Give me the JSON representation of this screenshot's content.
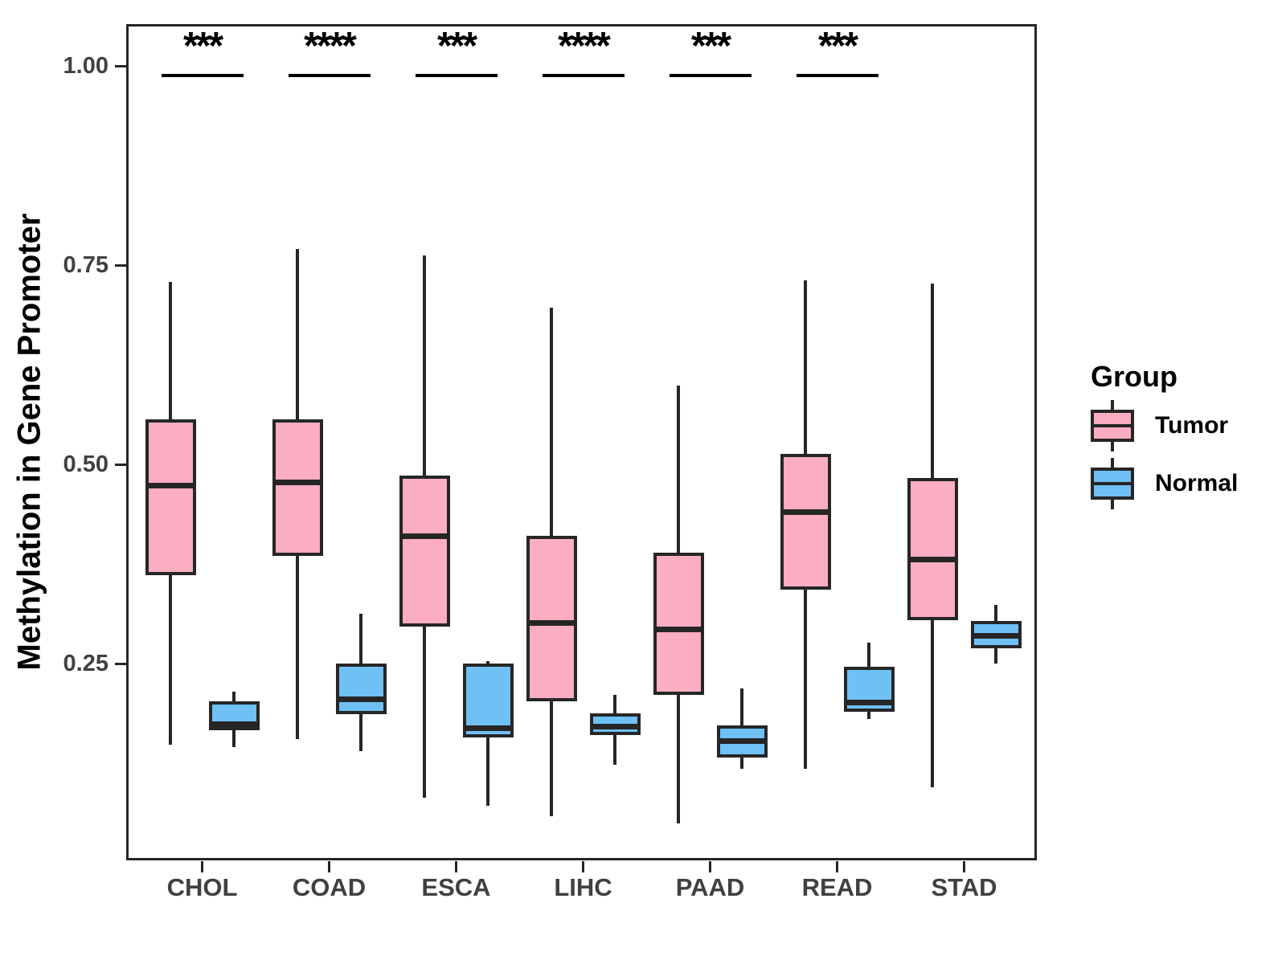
{
  "figure": {
    "background": "#ffffff"
  },
  "y_axis": {
    "title": "Methylation in Gene Promoter",
    "tick_labels": [
      "1.00",
      "0.75",
      "0.50",
      "0.25"
    ],
    "tick_values": [
      1.0,
      0.75,
      0.5,
      0.25
    ]
  },
  "x_axis": {
    "tick_labels": [
      "CHOL",
      "COAD",
      "ESCA",
      "LIHC",
      "PAAD",
      "READ",
      "STAD"
    ]
  },
  "legend": {
    "title": "Group",
    "entries": [
      {
        "label": "Tumor",
        "color": "#FBAEC1"
      },
      {
        "label": "Normal",
        "color": "#6FC0F4"
      }
    ]
  },
  "colors": {
    "tumor_fill": "#FBAEC1",
    "normal_fill": "#6FC0F4",
    "outline": "#262626",
    "axis_text": "#404040",
    "annotation": "#000000"
  },
  "chart_data": {
    "type": "grouped_boxplot",
    "title": "",
    "xlabel": "",
    "ylabel": "Methylation in Gene Promoter",
    "categories": [
      "CHOL",
      "COAD",
      "ESCA",
      "LIHC",
      "PAAD",
      "READ",
      "STAD"
    ],
    "groups": [
      "Tumor",
      "Normal"
    ],
    "y_ticks": [
      0.25,
      0.5,
      0.75,
      1.0
    ],
    "ylim": [
      0.0,
      1.05
    ],
    "grid": false,
    "legend_position": "right",
    "significance": [
      "***",
      "****",
      "***",
      "****",
      "***",
      "***",
      ""
    ],
    "series": [
      {
        "name": "Tumor",
        "fill": "#FBAEC1",
        "boxes": [
          {
            "category": "CHOL",
            "whisker_low": 0.148,
            "q1": 0.361,
            "median": 0.473,
            "q3": 0.556,
            "whisker_high": 0.729
          },
          {
            "category": "COAD",
            "whisker_low": 0.155,
            "q1": 0.385,
            "median": 0.477,
            "q3": 0.556,
            "whisker_high": 0.77
          },
          {
            "category": "ESCA",
            "whisker_low": 0.082,
            "q1": 0.296,
            "median": 0.41,
            "q3": 0.486,
            "whisker_high": 0.762
          },
          {
            "category": "LIHC",
            "whisker_low": 0.058,
            "q1": 0.203,
            "median": 0.301,
            "q3": 0.41,
            "whisker_high": 0.697
          },
          {
            "category": "PAAD",
            "whisker_low": 0.049,
            "q1": 0.211,
            "median": 0.293,
            "q3": 0.389,
            "whisker_high": 0.599
          },
          {
            "category": "READ",
            "whisker_low": 0.118,
            "q1": 0.343,
            "median": 0.44,
            "q3": 0.513,
            "whisker_high": 0.731
          },
          {
            "category": "STAD",
            "whisker_low": 0.095,
            "q1": 0.304,
            "median": 0.381,
            "q3": 0.483,
            "whisker_high": 0.727
          }
        ]
      },
      {
        "name": "Normal",
        "fill": "#6FC0F4",
        "boxes": [
          {
            "category": "CHOL",
            "whisker_low": 0.145,
            "q1": 0.166,
            "median": 0.174,
            "q3": 0.203,
            "whisker_high": 0.215
          },
          {
            "category": "COAD",
            "whisker_low": 0.14,
            "q1": 0.186,
            "median": 0.205,
            "q3": 0.25,
            "whisker_high": 0.313
          },
          {
            "category": "ESCA",
            "whisker_low": 0.072,
            "q1": 0.157,
            "median": 0.169,
            "q3": 0.25,
            "whisker_high": 0.253
          },
          {
            "category": "LIHC",
            "whisker_low": 0.123,
            "q1": 0.16,
            "median": 0.171,
            "q3": 0.188,
            "whisker_high": 0.211
          },
          {
            "category": "PAAD",
            "whisker_low": 0.118,
            "q1": 0.132,
            "median": 0.153,
            "q3": 0.172,
            "whisker_high": 0.219
          },
          {
            "category": "READ",
            "whisker_low": 0.18,
            "q1": 0.189,
            "median": 0.201,
            "q3": 0.246,
            "whisker_high": 0.276
          },
          {
            "category": "STAD",
            "whisker_low": 0.25,
            "q1": 0.269,
            "median": 0.285,
            "q3": 0.303,
            "whisker_high": 0.324
          }
        ]
      }
    ]
  }
}
